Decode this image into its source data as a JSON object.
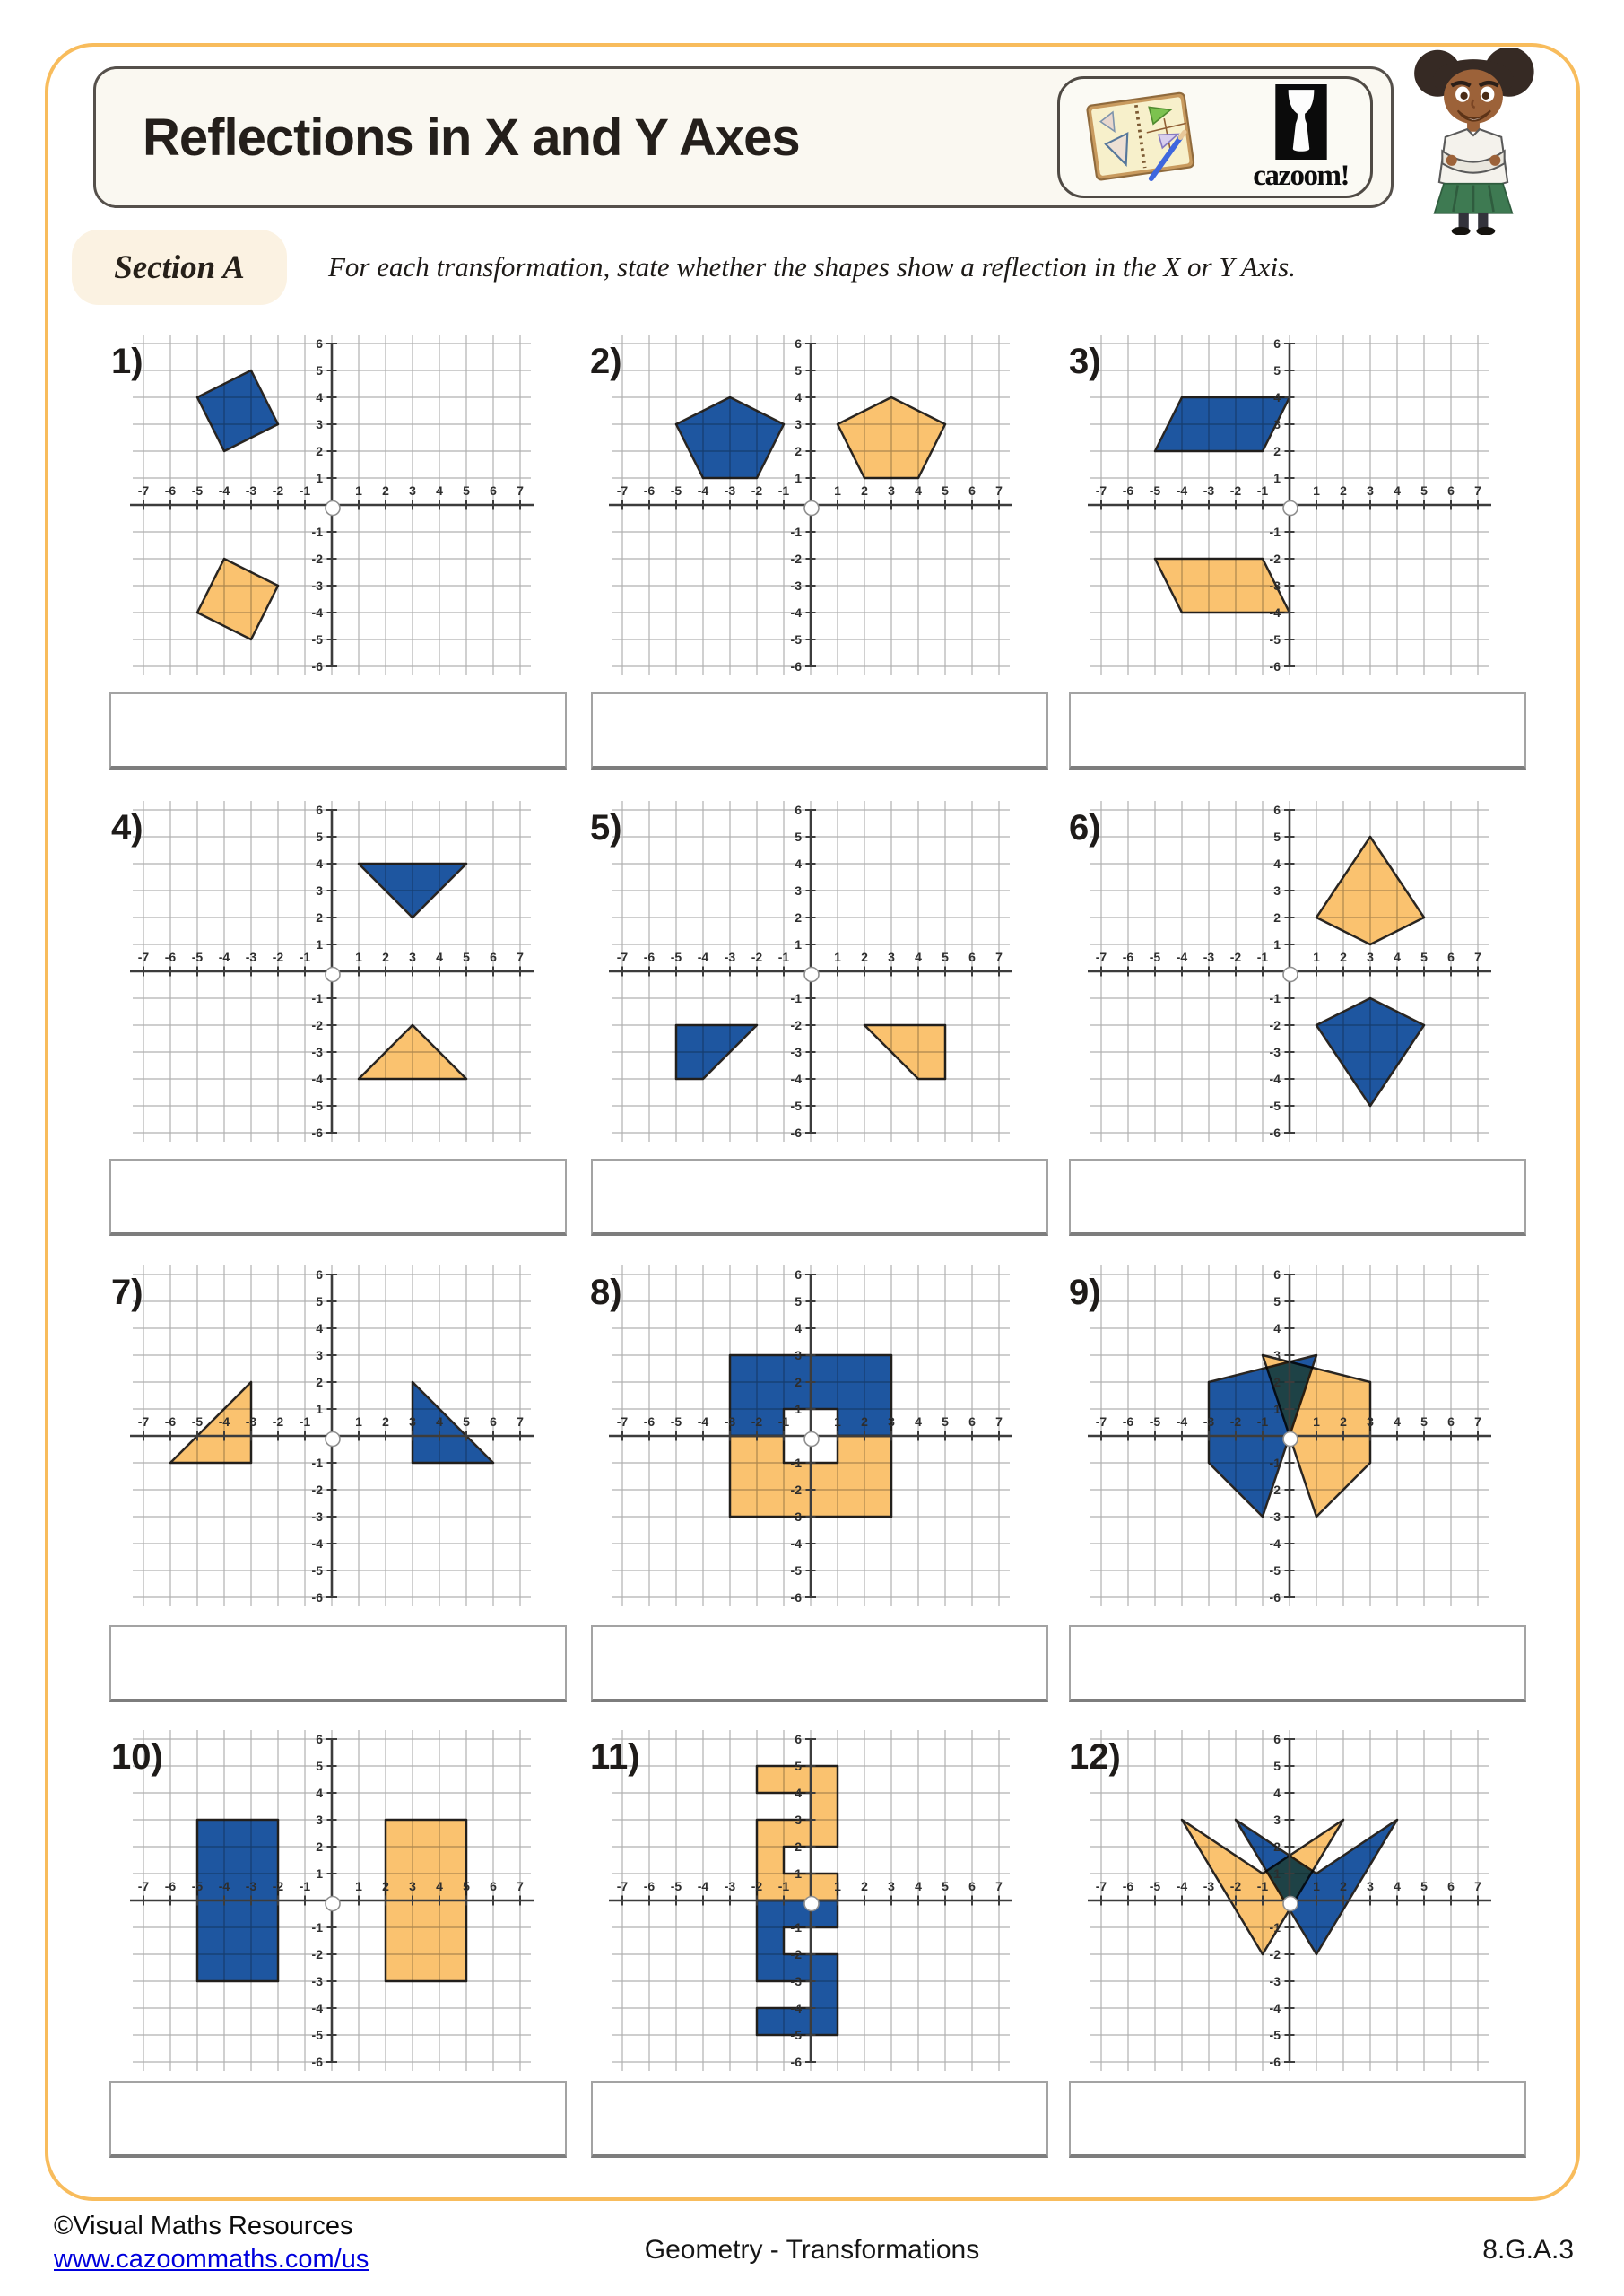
{
  "worksheet": {
    "title": "Reflections in X and Y Axes",
    "brand": "cazoom!",
    "section_label": "Section A",
    "instruction": "For each transformation, state whether the shapes show a reflection in the X or Y Axis.",
    "footer": {
      "copyright": "©Visual Maths Resources",
      "link": "www.cazoommaths.com/us",
      "center": "Geometry - Transformations",
      "standard": "8.G.A.3"
    }
  },
  "colors": {
    "blue": "#1E56A0",
    "orange": "#FAC26F",
    "shape_outline": "#2A2622",
    "grid": "#B0B0B0",
    "axis": "#3C3C3C",
    "accent_border": "#F8BC5C",
    "link_blue": "#0000DD"
  },
  "axis": {
    "xmin": -7,
    "xmax": 7,
    "ymin": -6,
    "ymax": 6,
    "x_tick_labels": [
      -7,
      -6,
      -5,
      -4,
      -3,
      -2,
      -1,
      1,
      2,
      3,
      4,
      5,
      6,
      7
    ],
    "y_tick_labels": [
      6,
      5,
      4,
      3,
      2,
      1,
      -1,
      -2,
      -3,
      -4,
      -5,
      -6
    ]
  },
  "graphs": [
    {
      "label": "1)",
      "answer": "",
      "shapes": [
        {
          "color": "blue",
          "points": [
            [
              -3,
              5
            ],
            [
              -2,
              3
            ],
            [
              -4,
              2
            ],
            [
              -5,
              4
            ]
          ]
        },
        {
          "color": "orange",
          "points": [
            [
              -5,
              -4
            ],
            [
              -4,
              -2
            ],
            [
              -2,
              -3
            ],
            [
              -3,
              -5
            ]
          ]
        }
      ]
    },
    {
      "label": "2)",
      "answer": "",
      "shapes": [
        {
          "color": "blue",
          "points": [
            [
              -3,
              4
            ],
            [
              -1,
              3
            ],
            [
              -2,
              1
            ],
            [
              -4,
              1
            ],
            [
              -5,
              3
            ]
          ]
        },
        {
          "color": "orange",
          "points": [
            [
              3,
              4
            ],
            [
              5,
              3
            ],
            [
              4,
              1
            ],
            [
              2,
              1
            ],
            [
              1,
              3
            ]
          ]
        }
      ]
    },
    {
      "label": "3)",
      "answer": "",
      "shapes": [
        {
          "color": "blue",
          "points": [
            [
              -4,
              4
            ],
            [
              0,
              4
            ],
            [
              -1,
              2
            ],
            [
              -5,
              2
            ]
          ]
        },
        {
          "color": "orange",
          "points": [
            [
              -5,
              -2
            ],
            [
              -1,
              -2
            ],
            [
              0,
              -4
            ],
            [
              -4,
              -4
            ]
          ]
        }
      ]
    },
    {
      "label": "4)",
      "answer": "",
      "shapes": [
        {
          "color": "blue",
          "points": [
            [
              1,
              4
            ],
            [
              5,
              4
            ],
            [
              3,
              2
            ]
          ]
        },
        {
          "color": "orange",
          "points": [
            [
              3,
              -2
            ],
            [
              5,
              -4
            ],
            [
              1,
              -4
            ]
          ]
        }
      ]
    },
    {
      "label": "5)",
      "answer": "",
      "shapes": [
        {
          "color": "blue",
          "points": [
            [
              -5,
              -2
            ],
            [
              -2,
              -2
            ],
            [
              -4,
              -4
            ],
            [
              -5,
              -4
            ]
          ]
        },
        {
          "color": "orange",
          "points": [
            [
              2,
              -2
            ],
            [
              5,
              -2
            ],
            [
              5,
              -4
            ],
            [
              4,
              -4
            ]
          ]
        }
      ]
    },
    {
      "label": "6)",
      "answer": "",
      "shapes": [
        {
          "color": "orange",
          "points": [
            [
              3,
              5
            ],
            [
              5,
              2
            ],
            [
              3,
              1
            ],
            [
              1,
              2
            ]
          ]
        },
        {
          "color": "blue",
          "points": [
            [
              3,
              -1
            ],
            [
              5,
              -2
            ],
            [
              3,
              -5
            ],
            [
              1,
              -2
            ]
          ]
        }
      ]
    },
    {
      "label": "7)",
      "answer": "",
      "shapes": [
        {
          "color": "orange",
          "points": [
            [
              -3,
              2
            ],
            [
              -3,
              -1
            ],
            [
              -6,
              -1
            ]
          ]
        },
        {
          "color": "blue",
          "points": [
            [
              3,
              2
            ],
            [
              6,
              -1
            ],
            [
              3,
              -1
            ]
          ]
        }
      ]
    },
    {
      "label": "8)",
      "answer": "",
      "shapes": [
        {
          "color": "blue",
          "points": [
            [
              -3,
              3
            ],
            [
              3,
              3
            ],
            [
              3,
              0
            ],
            [
              1,
              0
            ],
            [
              1,
              1
            ],
            [
              -1,
              1
            ],
            [
              -1,
              0
            ],
            [
              -3,
              0
            ]
          ]
        },
        {
          "color": "orange",
          "points": [
            [
              -3,
              0
            ],
            [
              -1,
              0
            ],
            [
              -1,
              -1
            ],
            [
              1,
              -1
            ],
            [
              1,
              0
            ],
            [
              3,
              0
            ],
            [
              3,
              -3
            ],
            [
              -3,
              -3
            ]
          ]
        }
      ]
    },
    {
      "label": "9)",
      "answer": "",
      "shapes": [
        {
          "color": "blue",
          "points": [
            [
              -3,
              2
            ],
            [
              1,
              3
            ],
            [
              0,
              0
            ],
            [
              -1,
              -3
            ],
            [
              -3,
              -1
            ]
          ]
        },
        {
          "color": "orange",
          "points": [
            [
              3,
              2
            ],
            [
              -1,
              3
            ],
            [
              0,
              0
            ],
            [
              1,
              -3
            ],
            [
              3,
              -1
            ]
          ]
        }
      ]
    },
    {
      "label": "10)",
      "answer": "",
      "shapes": [
        {
          "color": "blue",
          "points": [
            [
              -5,
              3
            ],
            [
              -2,
              3
            ],
            [
              -2,
              -3
            ],
            [
              -5,
              -3
            ]
          ]
        },
        {
          "color": "orange",
          "points": [
            [
              2,
              3
            ],
            [
              5,
              3
            ],
            [
              5,
              -3
            ],
            [
              2,
              -3
            ]
          ]
        }
      ]
    },
    {
      "label": "11)",
      "answer": "",
      "shapes": [
        {
          "color": "orange",
          "points": [
            [
              -2,
              0
            ],
            [
              -2,
              3
            ],
            [
              0,
              3
            ],
            [
              0,
              4
            ],
            [
              -2,
              4
            ],
            [
              -2,
              5
            ],
            [
              1,
              5
            ],
            [
              1,
              2
            ],
            [
              -1,
              2
            ],
            [
              -1,
              1
            ],
            [
              1,
              1
            ],
            [
              1,
              0
            ]
          ]
        },
        {
          "color": "blue",
          "points": [
            [
              -2,
              0
            ],
            [
              -2,
              -3
            ],
            [
              0,
              -3
            ],
            [
              0,
              -4
            ],
            [
              -2,
              -4
            ],
            [
              -2,
              -5
            ],
            [
              1,
              -5
            ],
            [
              1,
              -2
            ],
            [
              -1,
              -2
            ],
            [
              -1,
              -1
            ],
            [
              1,
              -1
            ],
            [
              1,
              0
            ]
          ]
        }
      ]
    },
    {
      "label": "12)",
      "answer": "",
      "shapes": [
        {
          "color": "orange",
          "points": [
            [
              -4,
              3
            ],
            [
              -1,
              1
            ],
            [
              2,
              3
            ],
            [
              -1,
              -2
            ]
          ]
        },
        {
          "color": "blue",
          "points": [
            [
              4,
              3
            ],
            [
              1,
              1
            ],
            [
              -2,
              3
            ],
            [
              1,
              -2
            ]
          ]
        }
      ]
    }
  ]
}
